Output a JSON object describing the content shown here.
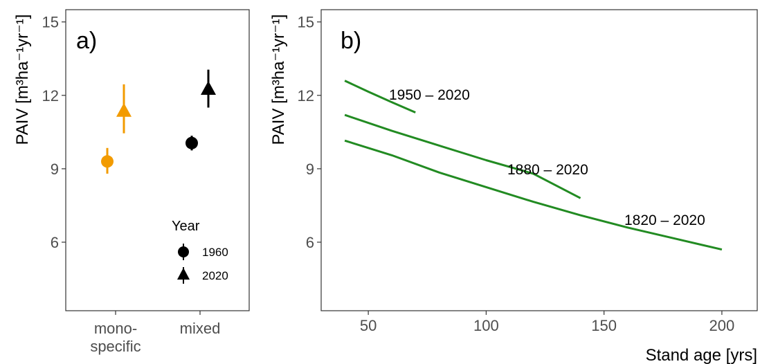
{
  "colors": {
    "mono": "#F29B00",
    "mixed": "#000000",
    "green": "#228B22",
    "axis_text": "#4d4d4d"
  },
  "panel_a": {
    "tag": "a)",
    "ylabel": "PAIV [m³ha⁻¹yr⁻¹]",
    "legend": {
      "title": "Year",
      "items": [
        {
          "label": "1960",
          "shape": "circle"
        },
        {
          "label": "2020",
          "shape": "triangle"
        }
      ]
    },
    "x_tick_labels": [
      [
        "mono-",
        "specific"
      ],
      [
        "mixed"
      ]
    ]
  },
  "panel_b": {
    "tag": "b)",
    "ylabel": "PAIV [m³ha⁻¹yr⁻¹]",
    "xlabel": "Stand age [yrs]",
    "line_labels": [
      "1950 – 2020",
      "1880 – 2020",
      "1820 – 2020"
    ]
  },
  "chart_data": [
    {
      "type": "scatter",
      "title": "",
      "xlabel": "",
      "ylabel": "PAIV [m³ha⁻¹yr⁻¹]",
      "categories": [
        "mono-specific",
        "mixed"
      ],
      "ylim": [
        3.2,
        15.5
      ],
      "yticks": [
        6,
        9,
        12,
        15
      ],
      "grid": false,
      "legend_position": "bottom-right",
      "series": [
        {
          "name": "1960",
          "marker": "circle",
          "points": [
            {
              "category": "mono-specific",
              "y": 9.3,
              "ymin": 8.8,
              "ymax": 9.85,
              "color_key": "mono"
            },
            {
              "category": "mixed",
              "y": 10.05,
              "ymin": 9.75,
              "ymax": 10.35,
              "color_key": "mixed"
            }
          ]
        },
        {
          "name": "2020",
          "marker": "triangle",
          "points": [
            {
              "category": "mono-specific",
              "y": 11.35,
              "ymin": 10.45,
              "ymax": 12.45,
              "color_key": "mono"
            },
            {
              "category": "mixed",
              "y": 12.25,
              "ymin": 11.5,
              "ymax": 13.05,
              "color_key": "mixed"
            }
          ]
        }
      ]
    },
    {
      "type": "line",
      "title": "",
      "xlabel": "Stand age [yrs]",
      "ylabel": "PAIV [m³ha⁻¹yr⁻¹]",
      "xlim": [
        30,
        215
      ],
      "ylim": [
        3.2,
        15.5
      ],
      "xticks": [
        50,
        100,
        150,
        200
      ],
      "yticks": [
        6,
        9,
        12,
        15
      ],
      "grid": false,
      "series": [
        {
          "name": "1950 – 2020",
          "color_key": "green",
          "x": [
            40,
            50,
            60,
            70
          ],
          "y": [
            12.6,
            12.15,
            11.72,
            11.3
          ]
        },
        {
          "name": "1880 – 2020",
          "color_key": "green",
          "x": [
            40,
            60,
            80,
            100,
            120,
            140
          ],
          "y": [
            11.2,
            10.55,
            9.95,
            9.35,
            8.8,
            7.8
          ]
        },
        {
          "name": "1820 – 2020",
          "color_key": "green",
          "x": [
            40,
            60,
            80,
            100,
            120,
            140,
            160,
            180,
            200
          ],
          "y": [
            10.15,
            9.55,
            8.85,
            8.25,
            7.65,
            7.1,
            6.6,
            6.15,
            5.7
          ]
        }
      ]
    }
  ]
}
